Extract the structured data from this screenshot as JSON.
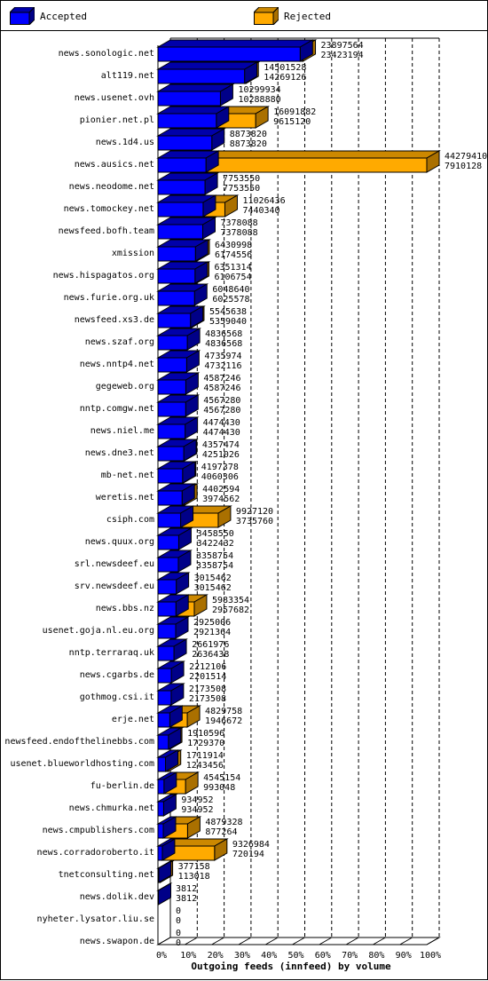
{
  "colors": {
    "accepted": "#0000ff",
    "rejected": "#ffaa00"
  },
  "legend": {
    "accepted_label": "Accepted",
    "rejected_label": "Rejected"
  },
  "chart_data": {
    "type": "bar",
    "orientation": "horizontal",
    "title": "",
    "xlabel": "Outgoing feeds (innfeed) by volume",
    "ylabel": "",
    "xlim": [
      0,
      100
    ],
    "x_ticks": [
      "0%",
      "10%",
      "20%",
      "30%",
      "40%",
      "50%",
      "60%",
      "70%",
      "80%",
      "90%",
      "100%"
    ],
    "grid": "vertical dashed",
    "legend_position": "top",
    "series": [
      {
        "name": "Accepted",
        "color": "#0000ff"
      },
      {
        "name": "Rejected",
        "color": "#ffaa00"
      }
    ],
    "rows": [
      {
        "host": "news.sonologic.net",
        "rejected_value": 23897564,
        "accepted_value": 23423194
      },
      {
        "host": "alt119.net",
        "rejected_value": 14501528,
        "accepted_value": 14269126
      },
      {
        "host": "news.usenet.ovh",
        "rejected_value": 10299934,
        "accepted_value": 10288880
      },
      {
        "host": "pionier.net.pl",
        "rejected_value": 16091882,
        "accepted_value": 9615120
      },
      {
        "host": "news.1d4.us",
        "rejected_value": 8873820,
        "accepted_value": 8873820
      },
      {
        "host": "news.ausics.net",
        "rejected_value": 44279410,
        "accepted_value": 7910128
      },
      {
        "host": "news.neodome.net",
        "rejected_value": 7753550,
        "accepted_value": 7753550
      },
      {
        "host": "news.tomockey.net",
        "rejected_value": 11026436,
        "accepted_value": 7440340
      },
      {
        "host": "newsfeed.bofh.team",
        "rejected_value": 7378088,
        "accepted_value": 7378088
      },
      {
        "host": "xmission",
        "rejected_value": 6430998,
        "accepted_value": 6174556
      },
      {
        "host": "news.hispagatos.org",
        "rejected_value": 6351314,
        "accepted_value": 6106754
      },
      {
        "host": "news.furie.org.uk",
        "rejected_value": 6048640,
        "accepted_value": 6025578
      },
      {
        "host": "newsfeed.xs3.de",
        "rejected_value": 5545638,
        "accepted_value": 5359040
      },
      {
        "host": "news.szaf.org",
        "rejected_value": 4836568,
        "accepted_value": 4836568
      },
      {
        "host": "news.nntp4.net",
        "rejected_value": 4735974,
        "accepted_value": 4732116
      },
      {
        "host": "gegeweb.org",
        "rejected_value": 4587246,
        "accepted_value": 4587246
      },
      {
        "host": "nntp.comgw.net",
        "rejected_value": 4567280,
        "accepted_value": 4567280
      },
      {
        "host": "news.niel.me",
        "rejected_value": 4474430,
        "accepted_value": 4474430
      },
      {
        "host": "news.dne3.net",
        "rejected_value": 4357474,
        "accepted_value": 4251026
      },
      {
        "host": "mb-net.net",
        "rejected_value": 4197378,
        "accepted_value": 4060306
      },
      {
        "host": "weretis.net",
        "rejected_value": 4402594,
        "accepted_value": 3974562
      },
      {
        "host": "csiph.com",
        "rejected_value": 9927120,
        "accepted_value": 3735760
      },
      {
        "host": "news.quux.org",
        "rejected_value": 3458550,
        "accepted_value": 3422432
      },
      {
        "host": "srl.newsdeef.eu",
        "rejected_value": 3358754,
        "accepted_value": 3358754
      },
      {
        "host": "srv.newsdeef.eu",
        "rejected_value": 3015462,
        "accepted_value": 3015462
      },
      {
        "host": "news.bbs.nz",
        "rejected_value": 5983354,
        "accepted_value": 2957682
      },
      {
        "host": "usenet.goja.nl.eu.org",
        "rejected_value": 2925006,
        "accepted_value": 2921364
      },
      {
        "host": "nntp.terraraq.uk",
        "rejected_value": 2661976,
        "accepted_value": 2636438
      },
      {
        "host": "news.cgarbs.de",
        "rejected_value": 2212106,
        "accepted_value": 2201514
      },
      {
        "host": "gothmog.csi.it",
        "rejected_value": 2173508,
        "accepted_value": 2173508
      },
      {
        "host": "erje.net",
        "rejected_value": 4829758,
        "accepted_value": 1946672
      },
      {
        "host": "newsfeed.endofthelinebbs.com",
        "rejected_value": 1910596,
        "accepted_value": 1729370
      },
      {
        "host": "usenet.blueworldhosting.com",
        "rejected_value": 1711914,
        "accepted_value": 1243456
      },
      {
        "host": "fu-berlin.de",
        "rejected_value": 4545154,
        "accepted_value": 993048
      },
      {
        "host": "news.chmurka.net",
        "rejected_value": 934952,
        "accepted_value": 934952
      },
      {
        "host": "news.cmpublishers.com",
        "rejected_value": 4879328,
        "accepted_value": 877264
      },
      {
        "host": "news.corradoroberto.it",
        "rejected_value": 9326984,
        "accepted_value": 720194
      },
      {
        "host": "tnetconsulting.net",
        "rejected_value": 377158,
        "accepted_value": 113018
      },
      {
        "host": "news.dolik.dev",
        "rejected_value": 3812,
        "accepted_value": 3812
      },
      {
        "host": "nyheter.lysator.liu.se",
        "rejected_value": 0,
        "accepted_value": 0
      },
      {
        "host": "news.swapon.de",
        "rejected_value": 0,
        "accepted_value": 0
      }
    ]
  }
}
